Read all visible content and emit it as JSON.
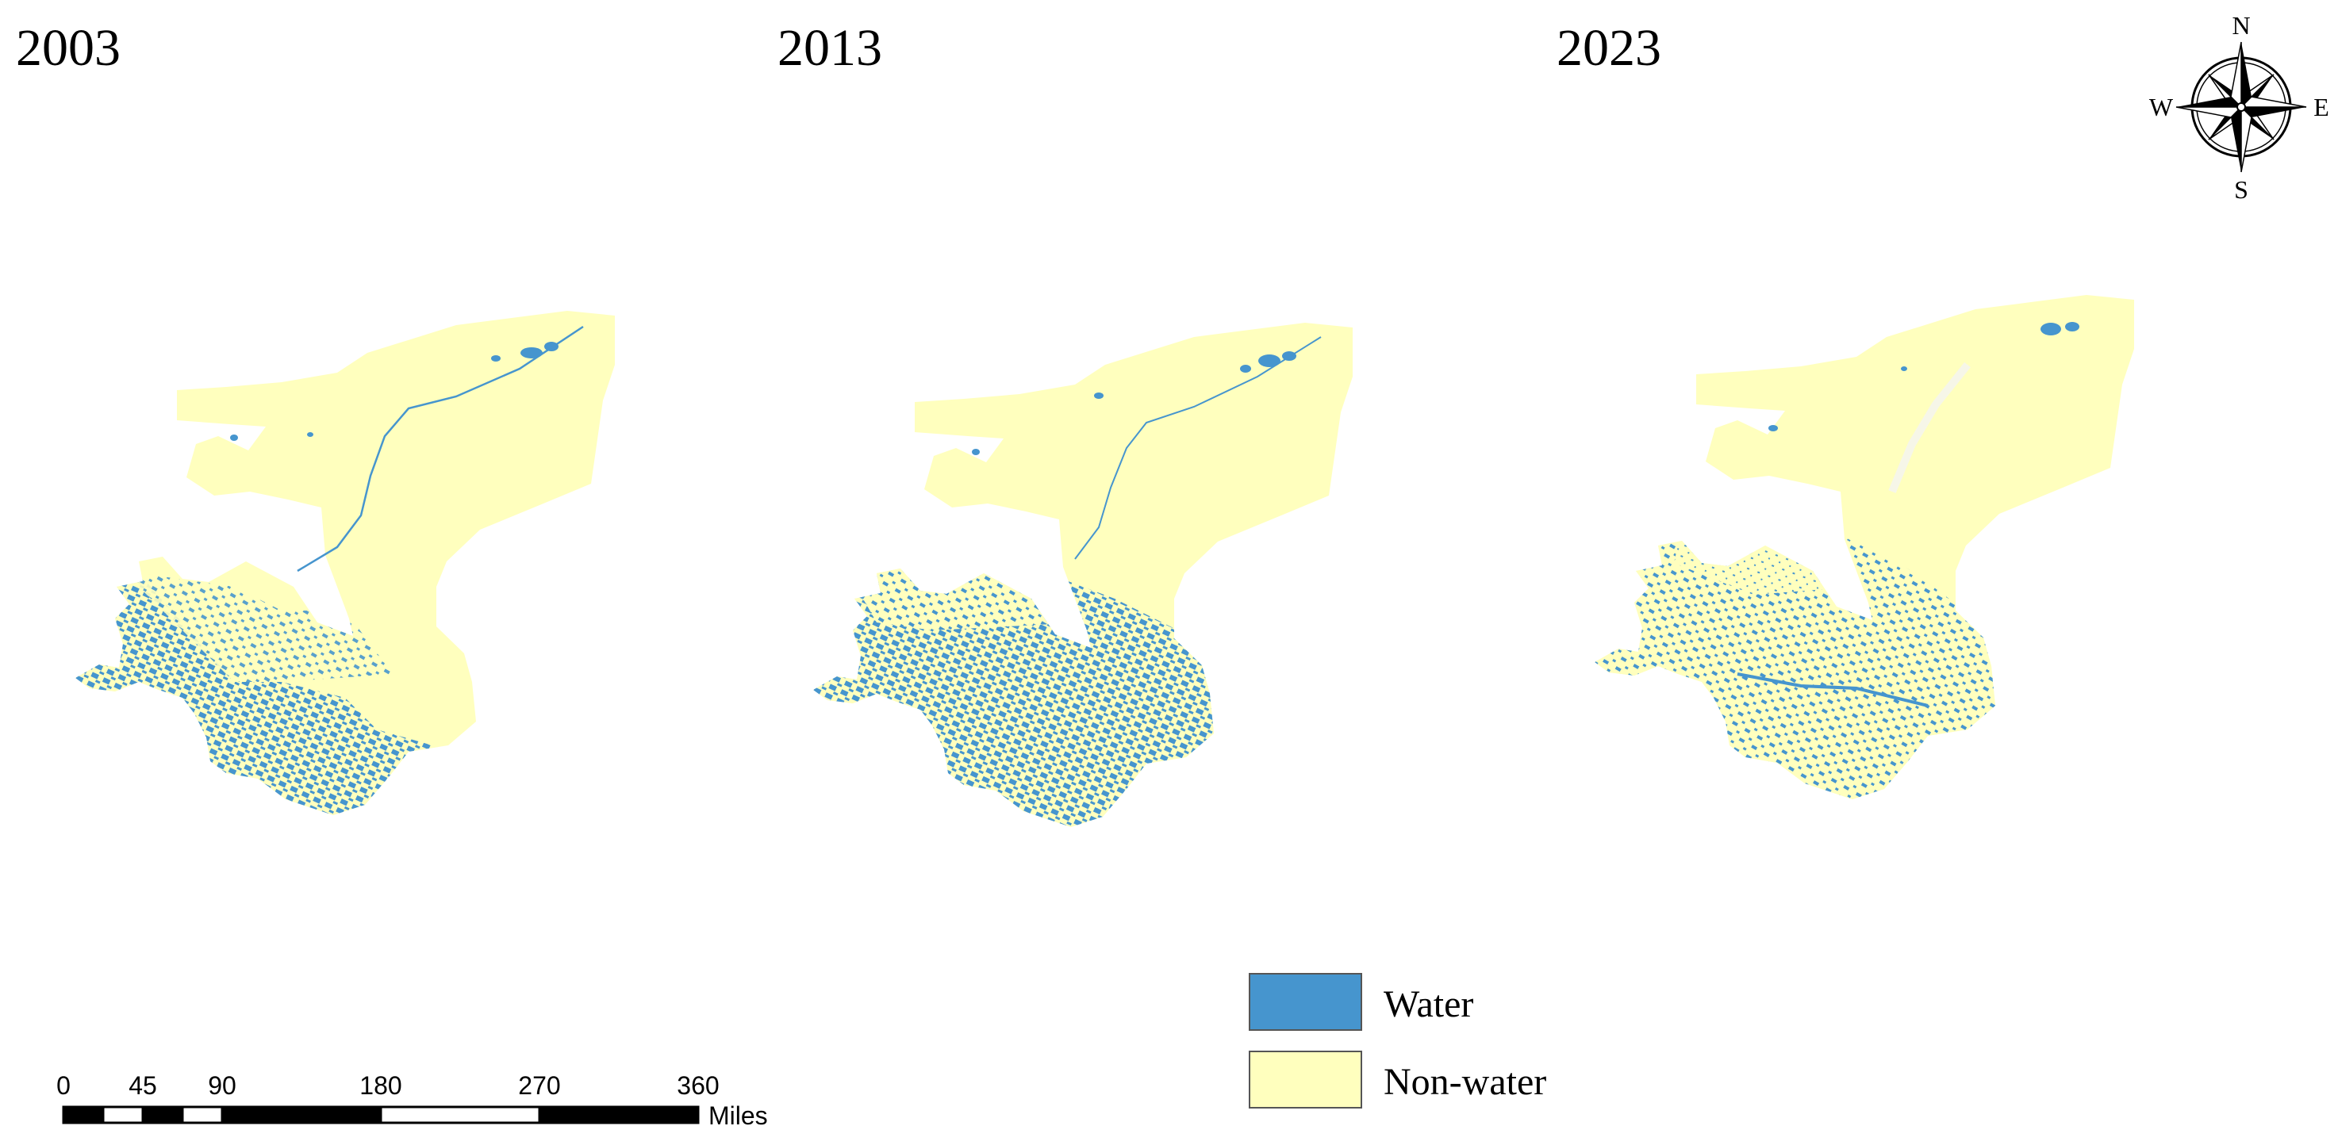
{
  "panels": [
    {
      "year": "2003"
    },
    {
      "year": "2013"
    },
    {
      "year": "2023"
    }
  ],
  "compass": {
    "icon": "north-arrow-compass-rose-icon",
    "north": "N",
    "south": "S",
    "east": "E",
    "west": "W"
  },
  "legend": {
    "items": [
      {
        "label": "Water",
        "color": "#4695CE"
      },
      {
        "label": "Non-water",
        "color": "#FFFFBE"
      }
    ]
  },
  "scale_bar": {
    "ticks": [
      "0",
      "45",
      "90",
      "180",
      "270",
      "360"
    ],
    "unit": "Miles"
  },
  "colors": {
    "water": "#4695CE",
    "non_water": "#FFFFBE",
    "background": "#FFFFFF"
  }
}
